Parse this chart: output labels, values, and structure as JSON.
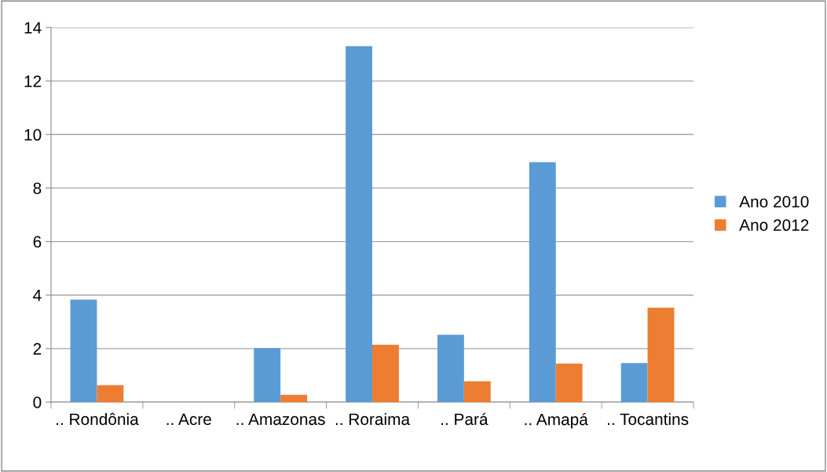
{
  "chart_data": {
    "type": "bar",
    "categories": [
      ".. Rondônia",
      ".. Acre",
      ".. Amazonas",
      ".. Roraima",
      ".. Pará",
      ".. Amapá",
      ".. Tocantins"
    ],
    "series": [
      {
        "name": "Ano 2010",
        "color": "#5b9bd5",
        "values": [
          3.83,
          0,
          2.02,
          13.3,
          2.52,
          8.97,
          1.46
        ]
      },
      {
        "name": "Ano 2012",
        "color": "#ed7d31",
        "values": [
          0.63,
          0,
          0.27,
          2.14,
          0.78,
          1.44,
          3.53
        ]
      }
    ],
    "ylim": [
      0,
      14
    ],
    "yticks": [
      0,
      2,
      4,
      6,
      8,
      10,
      12,
      14
    ],
    "grid": "y",
    "legend": "right"
  }
}
